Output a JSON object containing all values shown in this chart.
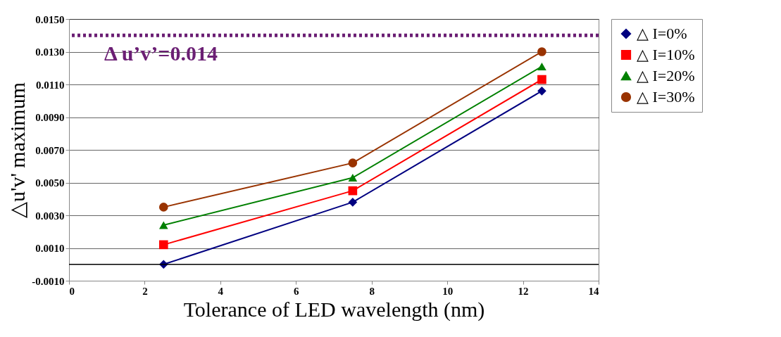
{
  "chart_data": {
    "type": "line",
    "xlabel": "Tolerance of LED wavelength (nm)",
    "ylabel": "△u'v' maximum",
    "x": [
      2.5,
      7.5,
      12.5
    ],
    "series": [
      {
        "name": "△ I=0%",
        "color": "#000080",
        "marker": "diamond",
        "values": [
          0.0,
          0.0038,
          0.0106
        ]
      },
      {
        "name": "△ I=10%",
        "color": "#ff0000",
        "marker": "square",
        "values": [
          0.0012,
          0.0045,
          0.0113
        ]
      },
      {
        "name": "△ I=20%",
        "color": "#008000",
        "marker": "triangle",
        "values": [
          0.0024,
          0.0053,
          0.0121
        ]
      },
      {
        "name": "△ I=30%",
        "color": "#993300",
        "marker": "circle",
        "values": [
          0.0035,
          0.0062,
          0.013
        ]
      }
    ],
    "xlim": [
      0,
      14
    ],
    "xticks": [
      0,
      2,
      4,
      6,
      8,
      10,
      12,
      14
    ],
    "ylim": [
      -0.001,
      0.015
    ],
    "yticks": [
      {
        "value": -0.001,
        "label": "-0.0010"
      },
      {
        "value": 0.001,
        "label": "0.0010"
      },
      {
        "value": 0.003,
        "label": "0.0030"
      },
      {
        "value": 0.005,
        "label": "0.0050"
      },
      {
        "value": 0.007,
        "label": "0.0070"
      },
      {
        "value": 0.009,
        "label": "0.0090"
      },
      {
        "value": 0.011,
        "label": "0.0110"
      },
      {
        "value": 0.013,
        "label": "0.0130"
      },
      {
        "value": 0.015,
        "label": "0.0150"
      }
    ],
    "ref_lines": [
      {
        "axis": "y",
        "value": 0.014,
        "label": "Δ u’v’=0.014",
        "color": "#6b1f74",
        "line_style": "dotted"
      },
      {
        "axis": "y",
        "value": 0,
        "label": null,
        "color": "#000000",
        "line_style": "solid"
      }
    ],
    "grid": "y",
    "legend": "right"
  }
}
